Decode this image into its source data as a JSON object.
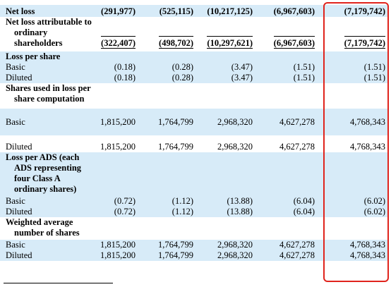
{
  "table": {
    "rows": [
      {
        "label": "Net loss",
        "values": [
          "(291,977)",
          "(525,115)",
          "(10,217,125)",
          "(6,967,603)",
          "(7,179,742)"
        ]
      },
      {
        "label": "Net loss attributable to ordinary shareholders",
        "values": [
          "(322,407)",
          "(498,702)",
          "(10,297,621)",
          "(6,967,603)",
          "(7,179,742)"
        ]
      },
      {
        "label": "Loss per share"
      },
      {
        "label": "Basic",
        "values": [
          "(0.18)",
          "(0.28)",
          "(3.47)",
          "(1.51)",
          "(1.51)"
        ]
      },
      {
        "label": "Diluted",
        "values": [
          "(0.18)",
          "(0.28)",
          "(3.47)",
          "(1.51)",
          "(1.51)"
        ]
      },
      {
        "label": "Shares used in loss per share computation"
      },
      {
        "label": "Basic",
        "values": [
          "1,815,200",
          "1,764,799",
          "2,968,320",
          "4,627,278",
          "4,768,343"
        ]
      },
      {
        "label": "Diluted",
        "values": [
          "1,815,200",
          "1,764,799",
          "2,968,320",
          "4,627,278",
          "4,768,343"
        ]
      },
      {
        "label": "Loss per ADS (each ADS representing four Class A ordinary shares)"
      },
      {
        "label": "Basic",
        "values": [
          "(0.72)",
          "(1.12)",
          "(13.88)",
          "(6.04)",
          "(6.02)"
        ]
      },
      {
        "label": "Diluted",
        "values": [
          "(0.72)",
          "(1.12)",
          "(13.88)",
          "(6.04)",
          "(6.02)"
        ]
      },
      {
        "label": "Weighted average number of shares"
      },
      {
        "label": "Basic",
        "values": [
          "1,815,200",
          "1,764,799",
          "2,968,320",
          "4,627,278",
          "4,768,343"
        ]
      },
      {
        "label": "Diluted",
        "values": [
          "1,815,200",
          "1,764,799",
          "2,968,320",
          "4,627,278",
          "4,768,343"
        ]
      }
    ]
  }
}
